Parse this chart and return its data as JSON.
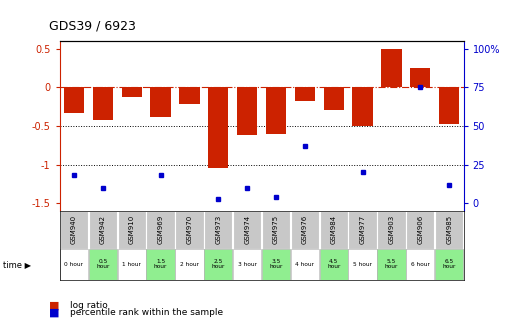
{
  "title": "GDS39 / 6923",
  "samples": [
    "GSM940",
    "GSM942",
    "GSM910",
    "GSM969",
    "GSM970",
    "GSM973",
    "GSM974",
    "GSM975",
    "GSM976",
    "GSM984",
    "GSM977",
    "GSM903",
    "GSM906",
    "GSM985"
  ],
  "time_labels": [
    "0 hour",
    "0.5\nhour",
    "1 hour",
    "1.5\nhour",
    "2 hour",
    "2.5\nhour",
    "3 hour",
    "3.5\nhour",
    "4 hour",
    "4.5\nhour",
    "5 hour",
    "5.5\nhour",
    "6 hour",
    "6.5\nhour"
  ],
  "log_ratio": [
    -0.33,
    -0.43,
    -0.12,
    -0.38,
    -0.22,
    -1.05,
    -0.62,
    -0.6,
    -0.18,
    -0.3,
    -0.5,
    0.5,
    0.25,
    -0.48
  ],
  "pct_vals": [
    18,
    10,
    null,
    18,
    null,
    3,
    10,
    4,
    37,
    null,
    20,
    null,
    75,
    12
  ],
  "bar_color": "#cc2200",
  "dot_color": "#0000cc",
  "bg_color": "#ffffff",
  "sample_bg": "#c8c8c8",
  "time_bg_green": "#90ee90",
  "time_bg_white": "#ffffff",
  "legend_log_color": "#cc2200",
  "legend_pct_color": "#0000cc"
}
